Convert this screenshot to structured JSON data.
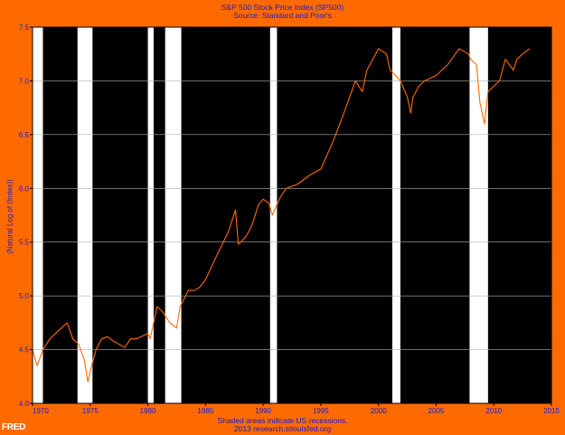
{
  "chart_data": {
    "type": "line",
    "title": "S&P 500 Stock Price Index (SP500)",
    "subtitle": "Source: Standard and Poor's",
    "ylabel": "(Natural Log of (Index))",
    "xlabel": "",
    "footnote": "Shaded areas indicate US recessions.",
    "footnote2": "2013 research.stlouisfed.org",
    "xlim": [
      1970,
      2015
    ],
    "ylim": [
      4.0,
      7.5
    ],
    "x_ticks": [
      "1970",
      "1975",
      "1980",
      "1985",
      "1990",
      "1995",
      "2000",
      "2005",
      "2010",
      "2015"
    ],
    "y_ticks": [
      "4.0",
      "4.5",
      "5.0",
      "5.5",
      "6.0",
      "6.5",
      "7.0",
      "7.5"
    ],
    "grid": "horizontal",
    "recessions": [
      [
        1970.0,
        1970.9
      ],
      [
        1973.9,
        1975.2
      ],
      [
        1980.0,
        1980.5
      ],
      [
        1981.5,
        1982.9
      ],
      [
        1990.6,
        1991.2
      ],
      [
        2001.2,
        2001.9
      ],
      [
        2007.9,
        2009.5
      ]
    ],
    "series": [
      {
        "color": "#ff6a00",
        "x": [
          1970.0,
          1970.4,
          1970.9,
          1971.5,
          1972.0,
          1972.5,
          1973.0,
          1973.5,
          1974.0,
          1974.5,
          1974.8,
          1975.0,
          1975.5,
          1976.0,
          1976.5,
          1977.0,
          1978.0,
          1978.5,
          1979.0,
          1980.0,
          1980.2,
          1980.8,
          1981.3,
          1981.9,
          1982.5,
          1982.8,
          1983.5,
          1984.0,
          1984.5,
          1985.0,
          1986.0,
          1987.0,
          1987.6,
          1987.85,
          1988.5,
          1989.0,
          1989.6,
          1990.0,
          1990.5,
          1990.8,
          1991.5,
          1992.0,
          1993.0,
          1994.0,
          1995.0,
          1996.0,
          1997.0,
          1998.0,
          1998.6,
          1999.0,
          1999.5,
          2000.0,
          2000.7,
          2001.0,
          2001.5,
          2001.9,
          2002.5,
          2002.8,
          2003.0,
          2003.5,
          2004.0,
          2005.0,
          2006.0,
          2007.0,
          2007.8,
          2008.0,
          2008.5,
          2008.8,
          2009.2,
          2009.5,
          2010.0,
          2010.5,
          2011.0,
          2011.7,
          2012.0,
          2012.5,
          2013.1
        ],
        "values": [
          4.5,
          4.35,
          4.5,
          4.6,
          4.65,
          4.7,
          4.75,
          4.6,
          4.55,
          4.4,
          4.2,
          4.3,
          4.5,
          4.6,
          4.62,
          4.58,
          4.52,
          4.6,
          4.6,
          4.65,
          4.6,
          4.9,
          4.85,
          4.75,
          4.7,
          4.9,
          5.05,
          5.05,
          5.08,
          5.15,
          5.38,
          5.6,
          5.8,
          5.48,
          5.55,
          5.65,
          5.85,
          5.9,
          5.86,
          5.75,
          5.92,
          6.0,
          6.04,
          6.12,
          6.18,
          6.42,
          6.7,
          7.0,
          6.9,
          7.1,
          7.2,
          7.3,
          7.25,
          7.1,
          7.05,
          7.0,
          6.85,
          6.7,
          6.85,
          6.95,
          7.0,
          7.05,
          7.15,
          7.3,
          7.25,
          7.2,
          7.15,
          6.8,
          6.6,
          6.9,
          6.95,
          7.0,
          7.2,
          7.1,
          7.2,
          7.25,
          7.3
        ]
      }
    ]
  },
  "logo": "FRED"
}
